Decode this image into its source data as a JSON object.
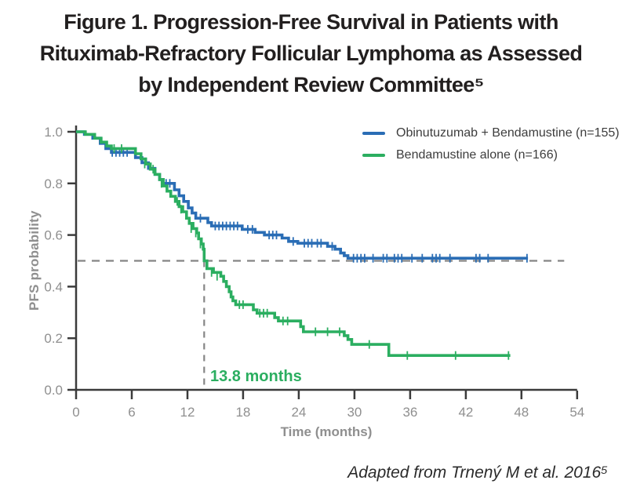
{
  "title": {
    "lines": [
      "Figure 1. Progression-Free Survival in Patients with",
      "Rituximab-Refractory Follicular Lymphoma as Assessed",
      "by Independent Review Committee⁵"
    ]
  },
  "attribution": "Adapted from Trnený M et al. 2016⁵",
  "colors": {
    "obinutuzumab_blue": "#2A6DB5",
    "bendamustine_green": "#2BAE60",
    "axis": "#3B3B3B",
    "tick_label_gray": "#8F8F8F",
    "dashed_gray": "#858585",
    "title_black": "#221F1F",
    "legend_text": "#3D3D3D"
  },
  "chart_data": {
    "type": "line",
    "subtype": "kaplan-meier-step",
    "title": "Figure 1. Progression-Free Survival in Patients with Rituximab-Refractory Follicular Lymphoma as Assessed by Independent Review Committee",
    "xlabel": "Time (months)",
    "ylabel": "PFS probability",
    "xlim": [
      0,
      54
    ],
    "ylim": [
      0.0,
      1.0
    ],
    "x_ticks": [
      0,
      6,
      12,
      18,
      24,
      30,
      36,
      42,
      48,
      54
    ],
    "y_ticks": [
      "0.0",
      "0.2",
      "0.4",
      "0.6",
      "0.8",
      "1.0"
    ],
    "grid": false,
    "legend_position": "top-right",
    "reference_lines": {
      "horizontal_y": 0.5,
      "horizontal_x_range": [
        0,
        52.6
      ],
      "vertical_x": 13.8,
      "vertical_y_range": [
        0,
        0.5
      ],
      "vertical_label": "13.8 months"
    },
    "series": [
      {
        "name": "Obinutuzumab + Bendamustine (n=155)",
        "color": "#2A6DB5",
        "end_time": 48.7,
        "median_pfs_months": null,
        "steps": [
          [
            0,
            1.0
          ],
          [
            0.9,
            0.99
          ],
          [
            1.8,
            0.975
          ],
          [
            2.6,
            0.955
          ],
          [
            3.2,
            0.935
          ],
          [
            3.8,
            0.92
          ],
          [
            6.4,
            0.9
          ],
          [
            7.1,
            0.88
          ],
          [
            7.8,
            0.858
          ],
          [
            8.5,
            0.835
          ],
          [
            9.0,
            0.815
          ],
          [
            9.4,
            0.8
          ],
          [
            10.6,
            0.775
          ],
          [
            11.1,
            0.752
          ],
          [
            11.6,
            0.73
          ],
          [
            12.1,
            0.705
          ],
          [
            12.5,
            0.685
          ],
          [
            12.9,
            0.665
          ],
          [
            14.2,
            0.648
          ],
          [
            14.6,
            0.635
          ],
          [
            17.9,
            0.622
          ],
          [
            19.3,
            0.61
          ],
          [
            20.3,
            0.6
          ],
          [
            22.2,
            0.588
          ],
          [
            22.9,
            0.575
          ],
          [
            23.9,
            0.568
          ],
          [
            27.1,
            0.556
          ],
          [
            27.9,
            0.545
          ],
          [
            28.5,
            0.53
          ],
          [
            28.9,
            0.52
          ],
          [
            29.3,
            0.51
          ]
        ],
        "censor_ticks": [
          [
            3.9,
            0.92
          ],
          [
            4.3,
            0.92
          ],
          [
            4.7,
            0.92
          ],
          [
            5.1,
            0.92
          ],
          [
            5.5,
            0.92
          ],
          [
            9.7,
            0.8
          ],
          [
            10.1,
            0.8
          ],
          [
            13.4,
            0.665
          ],
          [
            15.0,
            0.635
          ],
          [
            15.4,
            0.635
          ],
          [
            15.8,
            0.635
          ],
          [
            16.2,
            0.635
          ],
          [
            16.6,
            0.635
          ],
          [
            17.0,
            0.635
          ],
          [
            17.4,
            0.635
          ],
          [
            18.5,
            0.622
          ],
          [
            19.0,
            0.622
          ],
          [
            20.8,
            0.6
          ],
          [
            21.2,
            0.6
          ],
          [
            21.6,
            0.6
          ],
          [
            23.4,
            0.575
          ],
          [
            24.6,
            0.568
          ],
          [
            25.0,
            0.568
          ],
          [
            25.4,
            0.568
          ],
          [
            26.0,
            0.568
          ],
          [
            26.4,
            0.568
          ],
          [
            27.6,
            0.556
          ],
          [
            29.9,
            0.51
          ],
          [
            30.3,
            0.51
          ],
          [
            30.7,
            0.51
          ],
          [
            31.1,
            0.51
          ],
          [
            32.0,
            0.51
          ],
          [
            33.1,
            0.51
          ],
          [
            33.5,
            0.51
          ],
          [
            34.3,
            0.51
          ],
          [
            34.7,
            0.51
          ],
          [
            35.1,
            0.51
          ],
          [
            36.2,
            0.51
          ],
          [
            37.3,
            0.51
          ],
          [
            38.4,
            0.51
          ],
          [
            38.8,
            0.51
          ],
          [
            39.2,
            0.51
          ],
          [
            40.3,
            0.51
          ],
          [
            43.1,
            0.51
          ],
          [
            43.5,
            0.51
          ],
          [
            44.4,
            0.51
          ],
          [
            48.6,
            0.51
          ]
        ]
      },
      {
        "name": "Bendamustine alone (n=166)",
        "color": "#2BAE60",
        "end_time": 46.8,
        "median_pfs_months": 13.8,
        "steps": [
          [
            0,
            1.0
          ],
          [
            1.0,
            0.99
          ],
          [
            2.0,
            0.975
          ],
          [
            2.7,
            0.96
          ],
          [
            3.3,
            0.945
          ],
          [
            3.8,
            0.935
          ],
          [
            6.4,
            0.915
          ],
          [
            7.0,
            0.895
          ],
          [
            7.5,
            0.875
          ],
          [
            8.0,
            0.855
          ],
          [
            8.5,
            0.835
          ],
          [
            9.0,
            0.815
          ],
          [
            9.4,
            0.79
          ],
          [
            9.8,
            0.77
          ],
          [
            10.2,
            0.75
          ],
          [
            10.7,
            0.73
          ],
          [
            11.1,
            0.71
          ],
          [
            11.5,
            0.69
          ],
          [
            11.9,
            0.665
          ],
          [
            12.2,
            0.645
          ],
          [
            12.6,
            0.625
          ],
          [
            13.0,
            0.608
          ],
          [
            13.2,
            0.585
          ],
          [
            13.5,
            0.565
          ],
          [
            13.7,
            0.545
          ],
          [
            13.8,
            0.5
          ],
          [
            14.1,
            0.47
          ],
          [
            14.8,
            0.455
          ],
          [
            15.6,
            0.44
          ],
          [
            15.9,
            0.42
          ],
          [
            16.2,
            0.4
          ],
          [
            16.5,
            0.38
          ],
          [
            16.7,
            0.36
          ],
          [
            16.9,
            0.345
          ],
          [
            17.2,
            0.33
          ],
          [
            19.1,
            0.31
          ],
          [
            19.5,
            0.297
          ],
          [
            21.4,
            0.28
          ],
          [
            21.8,
            0.267
          ],
          [
            24.2,
            0.245
          ],
          [
            24.5,
            0.225
          ],
          [
            28.9,
            0.21
          ],
          [
            29.3,
            0.195
          ],
          [
            29.7,
            0.176
          ],
          [
            33.7,
            0.133
          ]
        ],
        "censor_ticks": [
          [
            4.1,
            0.935
          ],
          [
            4.9,
            0.935
          ],
          [
            7.4,
            0.875
          ],
          [
            8.3,
            0.855
          ],
          [
            9.2,
            0.8
          ],
          [
            10.9,
            0.73
          ],
          [
            11.3,
            0.7
          ],
          [
            12.4,
            0.625
          ],
          [
            12.9,
            0.608
          ],
          [
            13.4,
            0.565
          ],
          [
            14.6,
            0.455
          ],
          [
            15.2,
            0.44
          ],
          [
            17.6,
            0.33
          ],
          [
            18.0,
            0.33
          ],
          [
            19.8,
            0.297
          ],
          [
            20.2,
            0.297
          ],
          [
            20.6,
            0.297
          ],
          [
            22.3,
            0.267
          ],
          [
            22.8,
            0.267
          ],
          [
            25.8,
            0.225
          ],
          [
            27.1,
            0.225
          ],
          [
            28.4,
            0.225
          ],
          [
            31.6,
            0.176
          ],
          [
            35.7,
            0.133
          ],
          [
            40.9,
            0.133
          ],
          [
            46.6,
            0.133
          ]
        ]
      }
    ]
  }
}
